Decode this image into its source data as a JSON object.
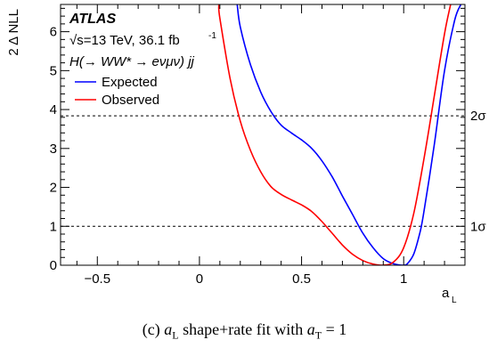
{
  "chart_data": {
    "type": "line",
    "xlabel_main": "a",
    "xlabel_sub": "L",
    "ylabel": "2 Δ NLL",
    "xlim": [
      -0.68,
      1.3
    ],
    "ylim": [
      0,
      6.7
    ],
    "x_ticks": [
      -0.5,
      0,
      0.5,
      1
    ],
    "x_tick_labels": [
      "−0.5",
      "0",
      "0.5",
      "1"
    ],
    "y_ticks": [
      0,
      1,
      2,
      3,
      4,
      5,
      6
    ],
    "y_tick_labels": [
      "0",
      "1",
      "2",
      "3",
      "4",
      "5",
      "6"
    ],
    "reference_lines": [
      {
        "y": 1,
        "label": "1σ",
        "style": "dashed"
      },
      {
        "y": 3.84,
        "label": "2σ",
        "style": "dashed"
      }
    ],
    "annotations": {
      "experiment": "ATLAS",
      "energy_prefix": "√s",
      "energy": "=13 TeV, 36.1 fb",
      "energy_exponent": "-1",
      "process": "H(→ WW* → eνμν) jj"
    },
    "legend": {
      "position": "top-left"
    },
    "series": [
      {
        "name": "Expected",
        "color": "#0000ff",
        "x": [
          0.185,
          0.2,
          0.25,
          0.3,
          0.35,
          0.4,
          0.45,
          0.5,
          0.55,
          0.6,
          0.65,
          0.7,
          0.75,
          0.8,
          0.85,
          0.9,
          0.95,
          1.0,
          1.02,
          1.05,
          1.08,
          1.1,
          1.15,
          1.2,
          1.25,
          1.28
        ],
        "y": [
          6.7,
          6.12,
          5.15,
          4.45,
          3.95,
          3.6,
          3.4,
          3.22,
          3.0,
          2.68,
          2.27,
          1.78,
          1.3,
          0.82,
          0.45,
          0.17,
          0.04,
          0.0,
          0.05,
          0.3,
          0.85,
          1.4,
          3.1,
          5.0,
          6.3,
          6.7
        ]
      },
      {
        "name": "Observed",
        "color": "#ff0000",
        "x": [
          0.095,
          0.1,
          0.15,
          0.2,
          0.25,
          0.3,
          0.35,
          0.4,
          0.45,
          0.5,
          0.55,
          0.6,
          0.65,
          0.7,
          0.75,
          0.8,
          0.85,
          0.9,
          0.95,
          1.0,
          1.05,
          1.1,
          1.15,
          1.2,
          1.23
        ],
        "y": [
          6.7,
          6.35,
          4.8,
          3.7,
          2.95,
          2.4,
          2.02,
          1.82,
          1.68,
          1.55,
          1.38,
          1.12,
          0.82,
          0.52,
          0.28,
          0.12,
          0.03,
          0.0,
          0.08,
          0.45,
          1.35,
          2.75,
          4.35,
          5.95,
          6.7
        ]
      }
    ]
  },
  "caption": {
    "prefix": "(c) ",
    "var": "a",
    "var_sub": "L",
    "middle": " shape+rate fit with ",
    "var2": "a",
    "var2_sub": "T",
    "suffix": " = 1"
  }
}
